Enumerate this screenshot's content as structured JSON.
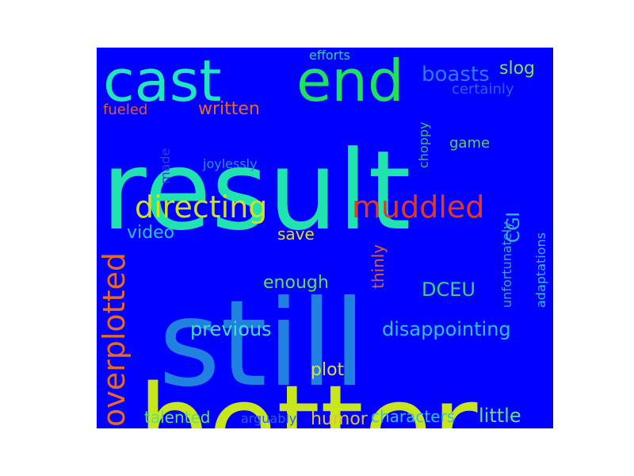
{
  "cloud": {
    "background": "#0000ff",
    "words": [
      {
        "text": "result",
        "color": "#20e3b0"
      },
      {
        "text": "still",
        "color": "#2081e0"
      },
      {
        "text": "better",
        "color": "#c8e61c"
      },
      {
        "text": "cast",
        "color": "#22e6c2"
      },
      {
        "text": "end",
        "color": "#20e060"
      },
      {
        "text": "directing",
        "color": "#d0e21a"
      },
      {
        "text": "muddled",
        "color": "#e03a22"
      },
      {
        "text": "overplotted",
        "color": "#e86a22"
      },
      {
        "text": "boasts",
        "color": "#2f7ae8"
      },
      {
        "text": "slog",
        "color": "#80e060"
      },
      {
        "text": "efforts",
        "color": "#40c8c0"
      },
      {
        "text": "certainly",
        "color": "#3060e0"
      },
      {
        "text": "fueled",
        "color": "#e85a2a"
      },
      {
        "text": "written",
        "color": "#e8682a"
      },
      {
        "text": "choppy",
        "color": "#40c060"
      },
      {
        "text": "game",
        "color": "#60d060"
      },
      {
        "text": "made",
        "color": "#3040e0"
      },
      {
        "text": "joylessly",
        "color": "#3090d8"
      },
      {
        "text": "CGI",
        "color": "#30c0e0"
      },
      {
        "text": "adaptations",
        "color": "#30c0d0"
      },
      {
        "text": "unfortunately",
        "color": "#40a8c0"
      },
      {
        "text": "video",
        "color": "#30c0e0"
      },
      {
        "text": "save",
        "color": "#e0e020"
      },
      {
        "text": "thinly",
        "color": "#e06030"
      },
      {
        "text": "enough",
        "color": "#60e060"
      },
      {
        "text": "DCEU",
        "color": "#40d080"
      },
      {
        "text": "previous",
        "color": "#40e0c8"
      },
      {
        "text": "disappointing",
        "color": "#30c0e8"
      },
      {
        "text": "plot",
        "color": "#d8e040"
      },
      {
        "text": "talented",
        "color": "#60e070"
      },
      {
        "text": "arguably",
        "color": "#3060e0"
      },
      {
        "text": "humor",
        "color": "#e0c040"
      },
      {
        "text": "characters",
        "color": "#30c0f0"
      },
      {
        "text": "little",
        "color": "#60e090"
      }
    ]
  }
}
